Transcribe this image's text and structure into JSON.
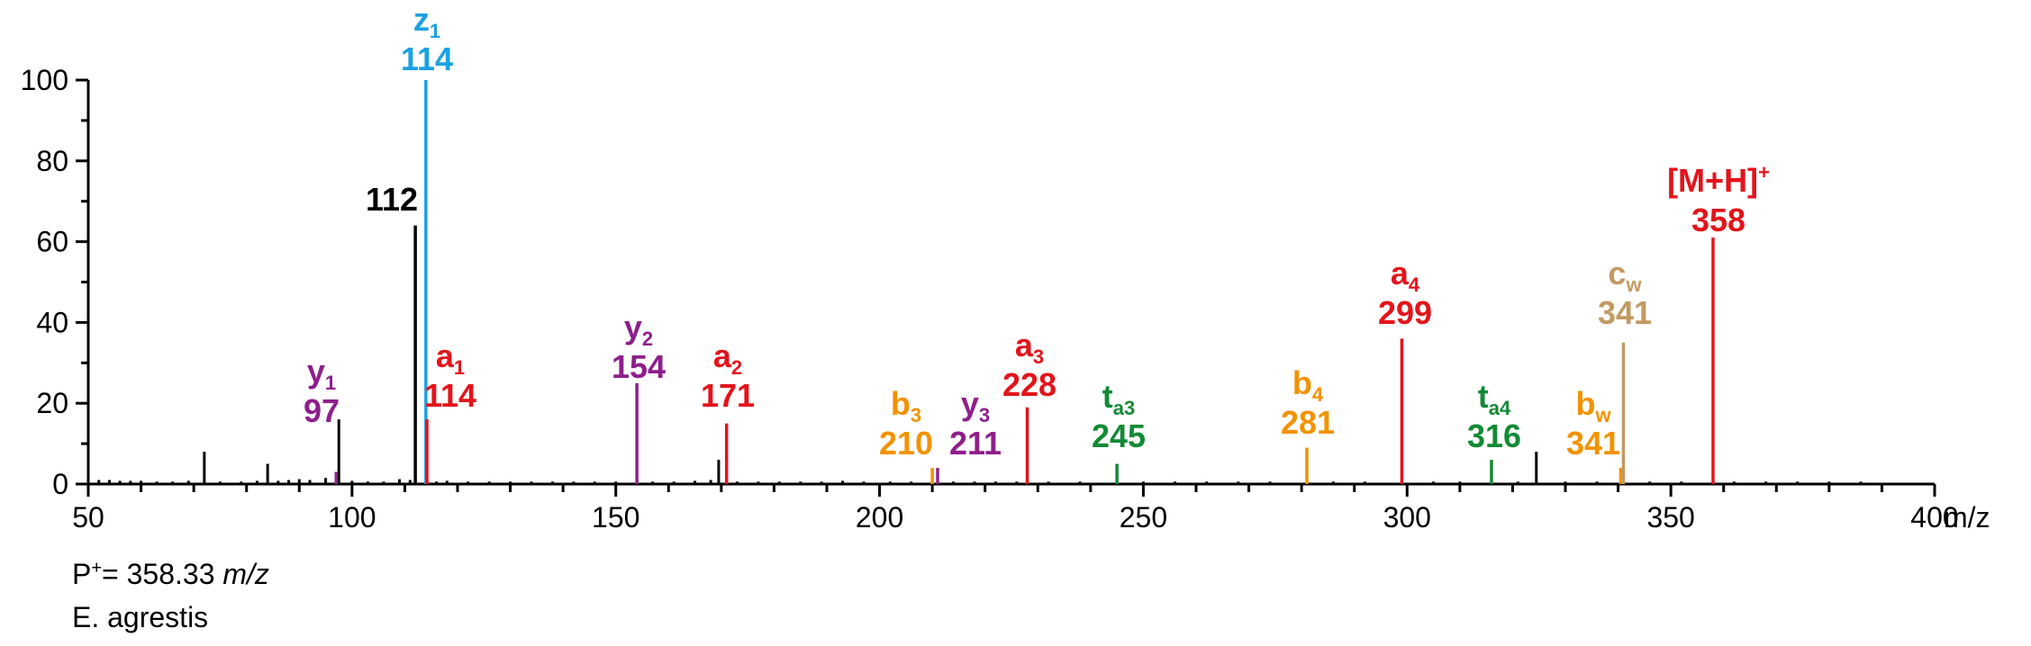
{
  "chart_data": {
    "type": "bar",
    "xlabel": "m/z",
    "xlim": [
      50,
      400
    ],
    "ylim": [
      0,
      100
    ],
    "x_ticks": [
      "50",
      "100",
      "150",
      "200",
      "250",
      "300",
      "350",
      "400"
    ],
    "y_ticks": [
      "0",
      "20",
      "40",
      "60",
      "80",
      "100"
    ],
    "colors": {
      "black": "#000000",
      "red": "#e3141b",
      "blue": "#1ba1e2",
      "purple": "#8e1f8b",
      "orange": "#f39200",
      "green": "#138a36",
      "tan": "#c39a62"
    },
    "labeled_peaks": [
      {
        "x": 97,
        "y": 3,
        "color": "purple",
        "ion": "y",
        "sub": "1",
        "mz": "97"
      },
      {
        "x": 112,
        "y": 64,
        "color": "black",
        "ion": "",
        "sub": "",
        "mz": "112"
      },
      {
        "x": 114,
        "y": 100,
        "color": "blue",
        "ion": "z",
        "sub": "1",
        "mz": "114"
      },
      {
        "x": 114.2,
        "y": 16,
        "color": "red",
        "ion": "a",
        "sub": "1",
        "mz": "114"
      },
      {
        "x": 154,
        "y": 25,
        "color": "purple",
        "ion": "y",
        "sub": "2",
        "mz": "154"
      },
      {
        "x": 171,
        "y": 15,
        "color": "red",
        "ion": "a",
        "sub": "2",
        "mz": "171"
      },
      {
        "x": 210,
        "y": 4,
        "color": "orange",
        "ion": "b",
        "sub": "3",
        "mz": "210"
      },
      {
        "x": 211,
        "y": 4,
        "color": "purple",
        "ion": "y",
        "sub": "3",
        "mz": "211"
      },
      {
        "x": 228,
        "y": 19,
        "color": "red",
        "ion": "a",
        "sub": "3",
        "mz": "228"
      },
      {
        "x": 245,
        "y": 5,
        "color": "green",
        "ion": "t",
        "sub": "a3",
        "mz": "245"
      },
      {
        "x": 281,
        "y": 9,
        "color": "orange",
        "ion": "b",
        "sub": "4",
        "mz": "281"
      },
      {
        "x": 299,
        "y": 36,
        "color": "red",
        "ion": "a",
        "sub": "4",
        "mz": "299"
      },
      {
        "x": 316,
        "y": 6,
        "color": "green",
        "ion": "t",
        "sub": "a4",
        "mz": "316"
      },
      {
        "x": 340.5,
        "y": 4,
        "color": "orange",
        "ion": "b",
        "sub": "w",
        "mz": "341"
      },
      {
        "x": 341,
        "y": 35,
        "color": "tan",
        "ion": "c",
        "sub": "w",
        "mz": "341"
      },
      {
        "x": 358,
        "y": 61,
        "color": "red",
        "ion": "[M+H]",
        "sup": "+",
        "sub": "",
        "mz": "358"
      }
    ],
    "unlabeled_peaks": [
      {
        "x": 72,
        "y": 8
      },
      {
        "x": 84,
        "y": 5
      },
      {
        "x": 97.5,
        "y": 16
      },
      {
        "x": 169.5,
        "y": 6
      },
      {
        "x": 324.5,
        "y": 8
      },
      {
        "x": 52,
        "y": 1
      },
      {
        "x": 54,
        "y": 1
      },
      {
        "x": 56,
        "y": 0.8
      },
      {
        "x": 58,
        "y": 0.8
      },
      {
        "x": 60,
        "y": 0.8
      },
      {
        "x": 63,
        "y": 0.6
      },
      {
        "x": 66,
        "y": 0.6
      },
      {
        "x": 69,
        "y": 0.8
      },
      {
        "x": 75,
        "y": 0.6
      },
      {
        "x": 79,
        "y": 0.6
      },
      {
        "x": 82,
        "y": 0.8
      },
      {
        "x": 86,
        "y": 0.8
      },
      {
        "x": 88,
        "y": 1
      },
      {
        "x": 90,
        "y": 1.2
      },
      {
        "x": 92,
        "y": 1
      },
      {
        "x": 95,
        "y": 1.5
      },
      {
        "x": 100,
        "y": 0.8
      },
      {
        "x": 103,
        "y": 0.6
      },
      {
        "x": 106,
        "y": 0.6
      },
      {
        "x": 109,
        "y": 1.2
      },
      {
        "x": 111,
        "y": 1
      },
      {
        "x": 116,
        "y": 0.6
      },
      {
        "x": 118,
        "y": 0.8
      },
      {
        "x": 122,
        "y": 0.6
      },
      {
        "x": 126,
        "y": 0.6
      },
      {
        "x": 130,
        "y": 0.6
      },
      {
        "x": 134,
        "y": 0.6
      },
      {
        "x": 138,
        "y": 0.6
      },
      {
        "x": 142,
        "y": 0.6
      },
      {
        "x": 146,
        "y": 0.6
      },
      {
        "x": 150,
        "y": 0.6
      },
      {
        "x": 157,
        "y": 0.6
      },
      {
        "x": 161,
        "y": 0.6
      },
      {
        "x": 165,
        "y": 0.8
      },
      {
        "x": 168,
        "y": 1
      },
      {
        "x": 173,
        "y": 0.6
      },
      {
        "x": 177,
        "y": 0.6
      },
      {
        "x": 181,
        "y": 0.6
      },
      {
        "x": 185,
        "y": 0.6
      },
      {
        "x": 189,
        "y": 0.6
      },
      {
        "x": 193,
        "y": 0.8
      },
      {
        "x": 197,
        "y": 0.6
      },
      {
        "x": 202,
        "y": 0.6
      },
      {
        "x": 206,
        "y": 0.6
      },
      {
        "x": 214,
        "y": 0.6
      },
      {
        "x": 218,
        "y": 0.6
      },
      {
        "x": 222,
        "y": 0.6
      },
      {
        "x": 226,
        "y": 0.6
      },
      {
        "x": 232,
        "y": 0.6
      },
      {
        "x": 238,
        "y": 0.6
      },
      {
        "x": 250,
        "y": 0.6
      },
      {
        "x": 256,
        "y": 0.6
      },
      {
        "x": 262,
        "y": 0.6
      },
      {
        "x": 268,
        "y": 0.6
      },
      {
        "x": 274,
        "y": 0.6
      },
      {
        "x": 286,
        "y": 0.6
      },
      {
        "x": 292,
        "y": 0.6
      },
      {
        "x": 305,
        "y": 0.6
      },
      {
        "x": 310,
        "y": 0.6
      },
      {
        "x": 321,
        "y": 0.6
      },
      {
        "x": 330,
        "y": 0.6
      },
      {
        "x": 336,
        "y": 0.6
      },
      {
        "x": 346,
        "y": 0.6
      },
      {
        "x": 352,
        "y": 0.6
      },
      {
        "x": 362,
        "y": 0.6
      },
      {
        "x": 368,
        "y": 0.6
      },
      {
        "x": 374,
        "y": 0.6
      },
      {
        "x": 380,
        "y": 0.6
      },
      {
        "x": 386,
        "y": 0.6
      }
    ]
  },
  "precursor": {
    "prefix": "P",
    "sup": "+",
    "eq": "= 358.33 ",
    "unit": "m/z"
  },
  "species": "E. agrestis"
}
